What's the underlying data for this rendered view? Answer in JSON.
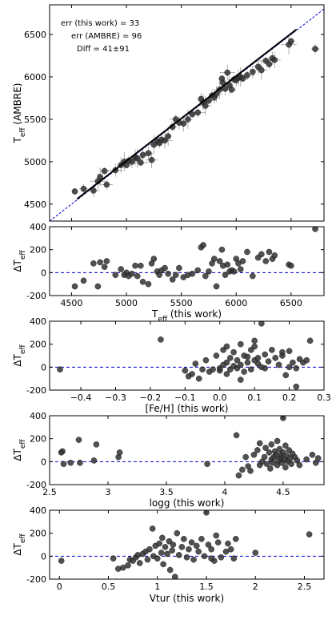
{
  "chart_data": [
    {
      "type": "scatter",
      "xlabel_main": "",
      "ylabel_main": "T",
      "ylabel_sub": "eff",
      "ylabel_rest": " (AMBRE)",
      "xlim": [
        4300,
        6800
      ],
      "ylim": [
        4300,
        6850
      ],
      "xticks": [
        4500,
        5000,
        5500,
        6000,
        6500
      ],
      "yticks": [
        4500,
        5000,
        5500,
        6000,
        6500
      ],
      "show_xticklabels": false,
      "annotations": [
        "err (this work)  = 33",
        "err (AMBRE) = 96",
        "Diff = 41±91"
      ],
      "one_to_one_line": {
        "x": [
          4300,
          6800
        ],
        "y": [
          4300,
          6800
        ],
        "color": "#0000cc",
        "style": "dashed"
      },
      "fit_line": {
        "x": [
          4550,
          6550
        ],
        "y": [
          4560,
          6560
        ],
        "color": "#000000"
      },
      "marker_color": "#333333",
      "points": [
        [
          4530,
          4650
        ],
        [
          4610,
          4680
        ],
        [
          4700,
          4660
        ],
        [
          4740,
          4770
        ],
        [
          4760,
          4820
        ],
        [
          4800,
          4890
        ],
        [
          4820,
          4730
        ],
        [
          4900,
          4900
        ],
        [
          4950,
          4960
        ],
        [
          4980,
          5000
        ],
        [
          5000,
          4960
        ],
        [
          5020,
          5010
        ],
        [
          5050,
          5000
        ],
        [
          5080,
          5050
        ],
        [
          5100,
          5040
        ],
        [
          5130,
          4990
        ],
        [
          5150,
          5080
        ],
        [
          5200,
          5100
        ],
        [
          5230,
          5020
        ],
        [
          5250,
          5200
        ],
        [
          5280,
          5240
        ],
        [
          5300,
          5220
        ],
        [
          5320,
          5260
        ],
        [
          5350,
          5250
        ],
        [
          5380,
          5300
        ],
        [
          5420,
          5410
        ],
        [
          5450,
          5500
        ],
        [
          5480,
          5460
        ],
        [
          5520,
          5450
        ],
        [
          5560,
          5500
        ],
        [
          5600,
          5560
        ],
        [
          5650,
          5580
        ],
        [
          5680,
          5740
        ],
        [
          5700,
          5700
        ],
        [
          5720,
          5660
        ],
        [
          5750,
          5720
        ],
        [
          5780,
          5780
        ],
        [
          5800,
          5760
        ],
        [
          5820,
          5800
        ],
        [
          5850,
          5850
        ],
        [
          5870,
          5980
        ],
        [
          5880,
          5930
        ],
        [
          5900,
          5860
        ],
        [
          5920,
          6050
        ],
        [
          5940,
          5900
        ],
        [
          5960,
          5850
        ],
        [
          5980,
          5970
        ],
        [
          6000,
          5960
        ],
        [
          6020,
          5990
        ],
        [
          6040,
          6000
        ],
        [
          6060,
          5980
        ],
        [
          6100,
          6020
        ],
        [
          6150,
          6060
        ],
        [
          6200,
          6120
        ],
        [
          6230,
          6080
        ],
        [
          6270,
          6190
        ],
        [
          6300,
          6150
        ],
        [
          6330,
          6220
        ],
        [
          6350,
          6200
        ],
        [
          6480,
          6380
        ],
        [
          6500,
          6420
        ],
        [
          6720,
          6330
        ]
      ]
    },
    {
      "type": "scatter",
      "xlabel_main": "T",
      "xlabel_sub": "eff",
      "xlabel_rest": " (this work)",
      "ylabel_main": "ΔT",
      "ylabel_sub": "eff",
      "xlim": [
        4300,
        6800
      ],
      "ylim": [
        -200,
        400
      ],
      "xticks": [
        4500,
        5000,
        5500,
        6000,
        6500
      ],
      "yticks": [
        -200,
        0,
        200,
        400
      ],
      "zero_line": {
        "y": 0,
        "color": "#0000cc",
        "style": "dashed"
      },
      "marker_color": "#333333",
      "points": [
        [
          4530,
          -120
        ],
        [
          4610,
          -70
        ],
        [
          4700,
          80
        ],
        [
          4740,
          -120
        ],
        [
          4760,
          90
        ],
        [
          4800,
          50
        ],
        [
          4820,
          100
        ],
        [
          4900,
          -20
        ],
        [
          4950,
          30
        ],
        [
          4980,
          -20
        ],
        [
          5000,
          0
        ],
        [
          5020,
          -30
        ],
        [
          5050,
          -10
        ],
        [
          5080,
          60
        ],
        [
          5100,
          -30
        ],
        [
          5130,
          60
        ],
        [
          5150,
          -80
        ],
        [
          5200,
          -100
        ],
        [
          5230,
          80
        ],
        [
          5250,
          120
        ],
        [
          5280,
          10
        ],
        [
          5300,
          -20
        ],
        [
          5320,
          20
        ],
        [
          5350,
          40
        ],
        [
          5380,
          -10
        ],
        [
          5420,
          -60
        ],
        [
          5450,
          -20
        ],
        [
          5480,
          40
        ],
        [
          5520,
          -40
        ],
        [
          5560,
          -20
        ],
        [
          5600,
          -10
        ],
        [
          5650,
          20
        ],
        [
          5680,
          220
        ],
        [
          5700,
          240
        ],
        [
          5720,
          -30
        ],
        [
          5750,
          10
        ],
        [
          5780,
          80
        ],
        [
          5800,
          120
        ],
        [
          5820,
          -120
        ],
        [
          5850,
          100
        ],
        [
          5870,
          200
        ],
        [
          5880,
          60
        ],
        [
          5900,
          -20
        ],
        [
          5920,
          70
        ],
        [
          5940,
          10
        ],
        [
          5960,
          20
        ],
        [
          5980,
          10
        ],
        [
          6000,
          120
        ],
        [
          6020,
          80
        ],
        [
          6040,
          30
        ],
        [
          6060,
          100
        ],
        [
          6100,
          180
        ],
        [
          6150,
          -30
        ],
        [
          6200,
          130
        ],
        [
          6230,
          160
        ],
        [
          6270,
          100
        ],
        [
          6300,
          180
        ],
        [
          6330,
          120
        ],
        [
          6350,
          150
        ],
        [
          6480,
          70
        ],
        [
          6500,
          60
        ],
        [
          6720,
          380
        ]
      ]
    },
    {
      "type": "scatter",
      "xlabel_main": "[Fe/H] (this work)",
      "ylabel_main": "ΔT",
      "ylabel_sub": "eff",
      "xlim": [
        -0.49,
        0.3
      ],
      "ylim": [
        -200,
        400
      ],
      "xticks": [
        -0.4,
        -0.3,
        -0.2,
        -0.1,
        0.0,
        0.1,
        0.2,
        0.3
      ],
      "xtick_labels": [
        "−0.4",
        "−0.3",
        "−0.2",
        "−0.1",
        "0.0",
        "0.1",
        "0.2",
        "0.3"
      ],
      "yticks": [
        -200,
        0,
        200,
        400
      ],
      "zero_line": {
        "y": 0,
        "color": "#0000cc",
        "style": "dashed"
      },
      "marker_color": "#333333",
      "points": [
        [
          -0.46,
          -20
        ],
        [
          -0.17,
          240
        ],
        [
          -0.09,
          -80
        ],
        [
          -0.08,
          -60
        ],
        [
          -0.07,
          30
        ],
        [
          -0.06,
          -100
        ],
        [
          -0.05,
          -20
        ],
        [
          -0.04,
          60
        ],
        [
          -0.03,
          -40
        ],
        [
          -0.02,
          -20
        ],
        [
          -0.01,
          100
        ],
        [
          0.0,
          -30
        ],
        [
          0.0,
          -10
        ],
        [
          0.01,
          20
        ],
        [
          0.01,
          150
        ],
        [
          0.02,
          40
        ],
        [
          0.02,
          -60
        ],
        [
          0.03,
          80
        ],
        [
          0.03,
          -20
        ],
        [
          0.04,
          10
        ],
        [
          0.04,
          130
        ],
        [
          0.05,
          -10
        ],
        [
          0.05,
          60
        ],
        [
          0.06,
          200
        ],
        [
          0.06,
          20
        ],
        [
          0.07,
          100
        ],
        [
          0.07,
          -40
        ],
        [
          0.08,
          40
        ],
        [
          0.08,
          90
        ],
        [
          0.09,
          150
        ],
        [
          0.09,
          -20
        ],
        [
          0.1,
          60
        ],
        [
          0.1,
          180
        ],
        [
          0.11,
          30
        ],
        [
          0.11,
          80
        ],
        [
          0.12,
          380
        ],
        [
          0.12,
          0
        ],
        [
          0.13,
          110
        ],
        [
          0.13,
          -10
        ],
        [
          0.14,
          50
        ],
        [
          0.15,
          150
        ],
        [
          0.16,
          80
        ],
        [
          0.17,
          20
        ],
        [
          0.18,
          100
        ],
        [
          0.19,
          -70
        ],
        [
          0.2,
          0
        ],
        [
          0.2,
          140
        ],
        [
          0.21,
          40
        ],
        [
          0.22,
          -10
        ],
        [
          0.23,
          70
        ],
        [
          0.24,
          40
        ],
        [
          0.25,
          60
        ],
        [
          0.26,
          230
        ],
        [
          -0.1,
          -30
        ],
        [
          0.02,
          180
        ],
        [
          0.1,
          230
        ],
        [
          0.06,
          -110
        ],
        [
          0.18,
          130
        ],
        [
          0.22,
          -170
        ]
      ]
    },
    {
      "type": "scatter",
      "xlabel_main": "logg (this work)",
      "ylabel_main": "ΔT",
      "ylabel_sub": "eff",
      "xlim": [
        2.5,
        4.85
      ],
      "ylim": [
        -200,
        400
      ],
      "xticks": [
        2.5,
        3.0,
        3.5,
        4.0,
        4.5
      ],
      "yticks": [
        -200,
        0,
        200,
        400
      ],
      "zero_line": {
        "y": 0,
        "color": "#0000cc",
        "style": "dashed"
      },
      "marker_color": "#333333",
      "points": [
        [
          2.6,
          80
        ],
        [
          2.61,
          90
        ],
        [
          2.62,
          -20
        ],
        [
          2.68,
          -10
        ],
        [
          2.75,
          190
        ],
        [
          2.76,
          -10
        ],
        [
          2.88,
          10
        ],
        [
          2.9,
          150
        ],
        [
          3.09,
          40
        ],
        [
          3.1,
          80
        ],
        [
          3.85,
          -20
        ],
        [
          4.1,
          230
        ],
        [
          4.12,
          -120
        ],
        [
          4.15,
          -70
        ],
        [
          4.18,
          40
        ],
        [
          4.2,
          -40
        ],
        [
          4.22,
          -80
        ],
        [
          4.25,
          60
        ],
        [
          4.28,
          100
        ],
        [
          4.3,
          160
        ],
        [
          4.3,
          -30
        ],
        [
          4.32,
          0
        ],
        [
          4.34,
          40
        ],
        [
          4.35,
          120
        ],
        [
          4.36,
          -20
        ],
        [
          4.38,
          80
        ],
        [
          4.39,
          -60
        ],
        [
          4.4,
          20
        ],
        [
          4.4,
          150
        ],
        [
          4.41,
          -10
        ],
        [
          4.42,
          40
        ],
        [
          4.43,
          90
        ],
        [
          4.44,
          60
        ],
        [
          4.45,
          -30
        ],
        [
          4.45,
          180
        ],
        [
          4.46,
          10
        ],
        [
          4.47,
          110
        ],
        [
          4.48,
          30
        ],
        [
          4.48,
          60
        ],
        [
          4.49,
          -10
        ],
        [
          4.5,
          80
        ],
        [
          4.5,
          380
        ],
        [
          4.51,
          20
        ],
        [
          4.52,
          140
        ],
        [
          4.52,
          -50
        ],
        [
          4.53,
          50
        ],
        [
          4.54,
          0
        ],
        [
          4.55,
          100
        ],
        [
          4.56,
          30
        ],
        [
          4.57,
          -20
        ],
        [
          4.58,
          70
        ],
        [
          4.6,
          40
        ],
        [
          4.62,
          10
        ],
        [
          4.64,
          -30
        ],
        [
          4.7,
          20
        ],
        [
          4.75,
          60
        ],
        [
          4.78,
          -10
        ],
        [
          4.8,
          30
        ]
      ]
    },
    {
      "type": "scatter",
      "xlabel_main": "Vtur (this work)",
      "ylabel_main": "ΔT",
      "ylabel_sub": "eff",
      "xlim": [
        -0.1,
        2.7
      ],
      "ylim": [
        -200,
        400
      ],
      "xticks": [
        0.0,
        0.5,
        1.0,
        1.5,
        2.0,
        2.5
      ],
      "yticks": [
        -200,
        0,
        200,
        400
      ],
      "zero_line": {
        "y": 0,
        "color": "#0000cc",
        "style": "dashed"
      },
      "marker_color": "#333333",
      "points": [
        [
          0.02,
          -40
        ],
        [
          0.55,
          -20
        ],
        [
          0.6,
          -110
        ],
        [
          0.65,
          -100
        ],
        [
          0.7,
          -80
        ],
        [
          0.72,
          -30
        ],
        [
          0.75,
          -40
        ],
        [
          0.78,
          -10
        ],
        [
          0.8,
          10
        ],
        [
          0.82,
          -60
        ],
        [
          0.85,
          20
        ],
        [
          0.88,
          40
        ],
        [
          0.9,
          -30
        ],
        [
          0.92,
          60
        ],
        [
          0.95,
          240
        ],
        [
          0.96,
          0
        ],
        [
          0.98,
          90
        ],
        [
          1.0,
          -20
        ],
        [
          1.02,
          110
        ],
        [
          1.04,
          30
        ],
        [
          1.05,
          160
        ],
        [
          1.06,
          -70
        ],
        [
          1.08,
          80
        ],
        [
          1.1,
          20
        ],
        [
          1.12,
          130
        ],
        [
          1.13,
          -120
        ],
        [
          1.15,
          50
        ],
        [
          1.16,
          100
        ],
        [
          1.18,
          -180
        ],
        [
          1.2,
          200
        ],
        [
          1.22,
          10
        ],
        [
          1.25,
          80
        ],
        [
          1.27,
          150
        ],
        [
          1.3,
          -10
        ],
        [
          1.32,
          60
        ],
        [
          1.35,
          120
        ],
        [
          1.37,
          -30
        ],
        [
          1.4,
          90
        ],
        [
          1.42,
          40
        ],
        [
          1.45,
          150
        ],
        [
          1.48,
          0
        ],
        [
          1.5,
          380
        ],
        [
          1.52,
          100
        ],
        [
          1.55,
          60
        ],
        [
          1.58,
          -40
        ],
        [
          1.6,
          180
        ],
        [
          1.62,
          120
        ],
        [
          1.65,
          -10
        ],
        [
          1.7,
          40
        ],
        [
          1.72,
          110
        ],
        [
          1.75,
          60
        ],
        [
          1.78,
          -20
        ],
        [
          1.8,
          150
        ],
        [
          2.0,
          30
        ],
        [
          2.55,
          190
        ],
        [
          1.55,
          -20
        ]
      ]
    }
  ]
}
